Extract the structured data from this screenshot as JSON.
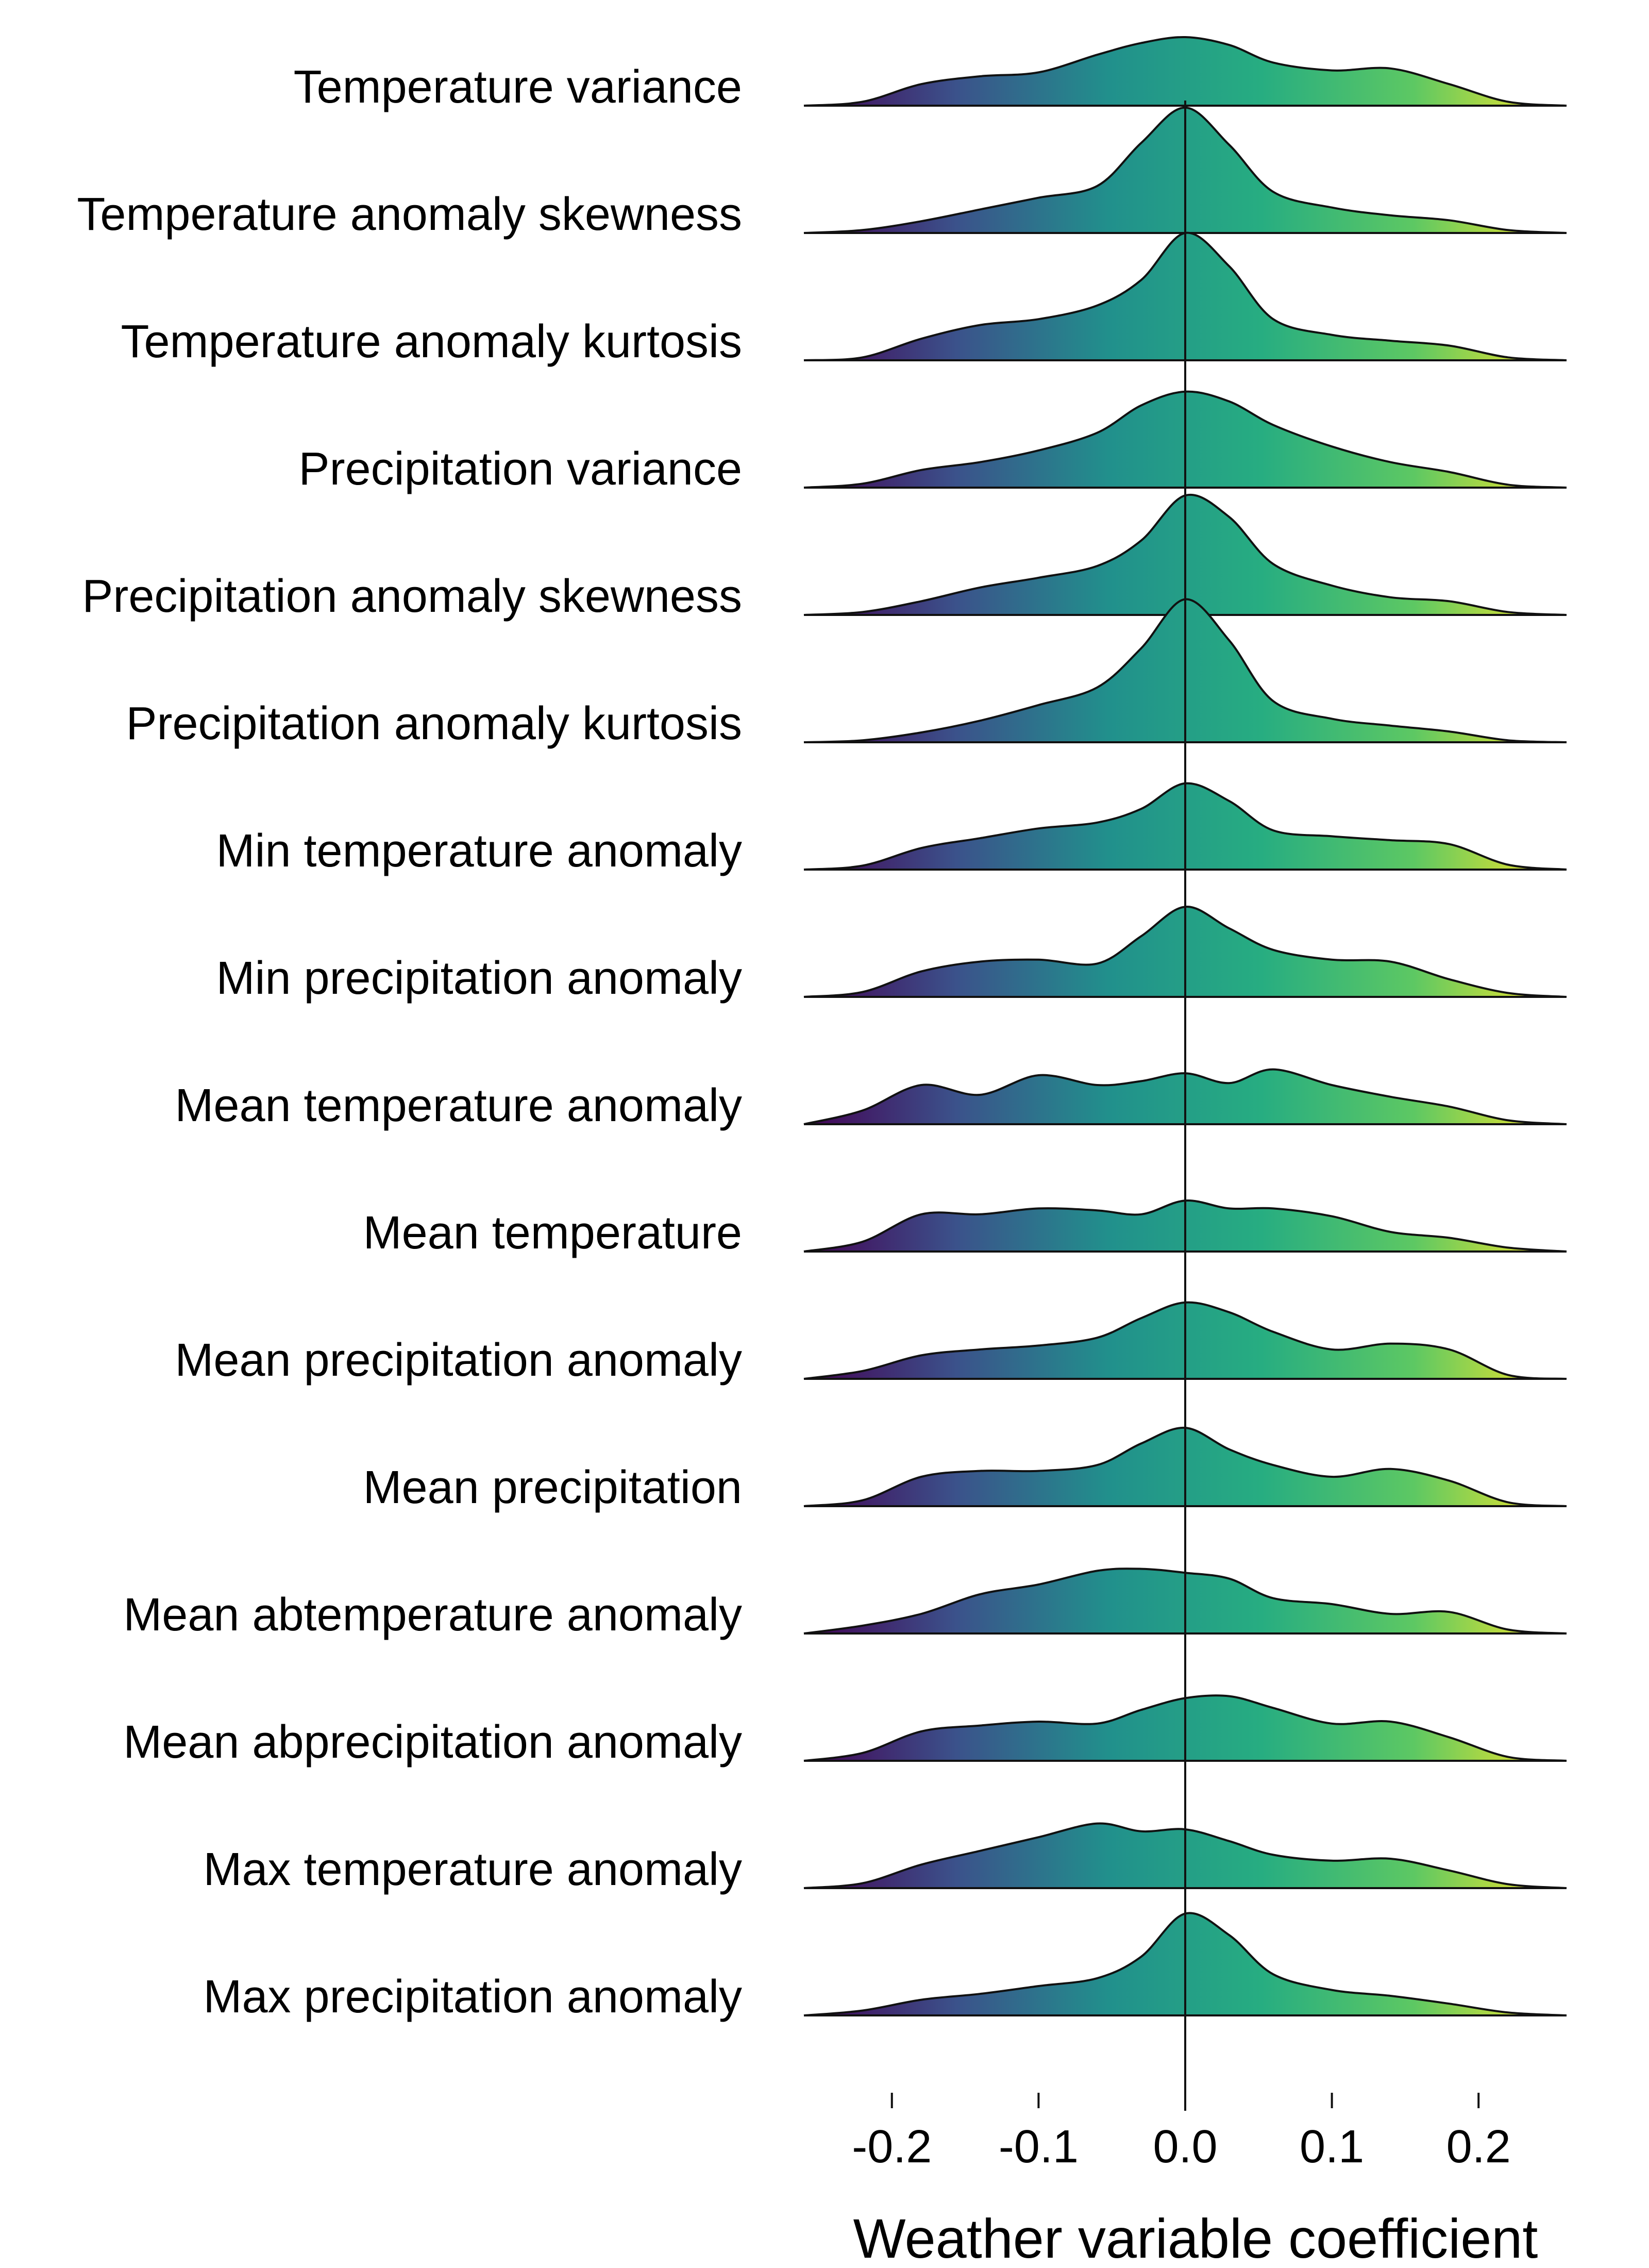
{
  "chart_data": {
    "type": "ridgeline",
    "title": "",
    "xlabel": "Weather variable coefficient",
    "ylabel": "",
    "xlim": [
      -0.26,
      0.26
    ],
    "xticks": [
      -0.2,
      -0.1,
      0.0,
      0.1,
      0.2
    ],
    "xtick_labels": [
      "-0.2",
      "-0.1",
      "0.0",
      "0.1",
      "0.2"
    ],
    "reference_line_x": 0.0,
    "fill": "viridis gradient along x",
    "gradient_colors": [
      "#440154",
      "#3b528b",
      "#21908c",
      "#27ad81",
      "#5dc863",
      "#fde725"
    ],
    "grid": false,
    "legend": "none",
    "x": [
      -0.26,
      -0.22,
      -0.18,
      -0.14,
      -0.1,
      -0.06,
      -0.03,
      0.0,
      0.03,
      0.06,
      0.1,
      0.14,
      0.18,
      0.22,
      0.26
    ],
    "series": [
      {
        "name": "Temperature variance",
        "density": [
          0.0,
          0.04,
          0.22,
          0.3,
          0.34,
          0.52,
          0.64,
          0.7,
          0.62,
          0.44,
          0.36,
          0.38,
          0.22,
          0.04,
          0.0
        ]
      },
      {
        "name": "Temperature anomaly skewness",
        "density": [
          0.0,
          0.03,
          0.12,
          0.24,
          0.36,
          0.48,
          0.92,
          1.28,
          0.9,
          0.42,
          0.26,
          0.18,
          0.13,
          0.03,
          0.0
        ]
      },
      {
        "name": "Temperature anomaly kurtosis",
        "density": [
          0.0,
          0.03,
          0.22,
          0.36,
          0.42,
          0.56,
          0.82,
          1.3,
          0.96,
          0.42,
          0.26,
          0.2,
          0.15,
          0.03,
          0.0
        ]
      },
      {
        "name": "Precipitation variance",
        "density": [
          0.0,
          0.04,
          0.18,
          0.26,
          0.38,
          0.56,
          0.84,
          0.98,
          0.88,
          0.64,
          0.42,
          0.26,
          0.16,
          0.03,
          0.0
        ]
      },
      {
        "name": "Precipitation anomaly skewness",
        "density": [
          0.0,
          0.03,
          0.14,
          0.28,
          0.38,
          0.5,
          0.76,
          1.22,
          1.0,
          0.52,
          0.3,
          0.18,
          0.14,
          0.03,
          0.0
        ]
      },
      {
        "name": "Precipitation anomaly kurtosis",
        "density": [
          0.0,
          0.02,
          0.1,
          0.22,
          0.38,
          0.56,
          0.96,
          1.46,
          1.04,
          0.42,
          0.24,
          0.17,
          0.11,
          0.02,
          0.0
        ]
      },
      {
        "name": "Min temperature anomaly",
        "density": [
          0.0,
          0.04,
          0.22,
          0.32,
          0.42,
          0.48,
          0.62,
          0.88,
          0.7,
          0.4,
          0.34,
          0.3,
          0.26,
          0.05,
          0.0
        ]
      },
      {
        "name": "Min precipitation anomaly",
        "density": [
          0.0,
          0.05,
          0.26,
          0.36,
          0.38,
          0.34,
          0.62,
          0.92,
          0.7,
          0.48,
          0.38,
          0.36,
          0.18,
          0.04,
          0.0
        ]
      },
      {
        "name": "Mean temperature anomaly",
        "density": [
          0.0,
          0.14,
          0.4,
          0.3,
          0.5,
          0.4,
          0.44,
          0.52,
          0.42,
          0.56,
          0.4,
          0.28,
          0.18,
          0.04,
          0.0
        ]
      },
      {
        "name": "Mean temperature",
        "density": [
          0.0,
          0.1,
          0.38,
          0.38,
          0.44,
          0.42,
          0.38,
          0.52,
          0.44,
          0.44,
          0.36,
          0.2,
          0.14,
          0.04,
          0.0
        ]
      },
      {
        "name": "Mean precipitation anomaly",
        "density": [
          0.0,
          0.08,
          0.24,
          0.3,
          0.34,
          0.42,
          0.62,
          0.78,
          0.68,
          0.48,
          0.3,
          0.36,
          0.3,
          0.04,
          0.0
        ]
      },
      {
        "name": "Mean precipitation",
        "density": [
          0.0,
          0.06,
          0.3,
          0.36,
          0.36,
          0.42,
          0.64,
          0.8,
          0.58,
          0.42,
          0.3,
          0.38,
          0.26,
          0.04,
          0.0
        ]
      },
      {
        "name": "Mean abtemperature anomaly",
        "density": [
          0.0,
          0.08,
          0.2,
          0.4,
          0.5,
          0.64,
          0.66,
          0.62,
          0.56,
          0.36,
          0.3,
          0.2,
          0.22,
          0.04,
          0.0
        ]
      },
      {
        "name": "Mean abprecipitation anomaly",
        "density": [
          0.0,
          0.08,
          0.3,
          0.36,
          0.4,
          0.38,
          0.52,
          0.64,
          0.66,
          0.54,
          0.38,
          0.4,
          0.24,
          0.04,
          0.0
        ]
      },
      {
        "name": "Max temperature anomaly",
        "density": [
          0.0,
          0.05,
          0.24,
          0.38,
          0.52,
          0.66,
          0.58,
          0.6,
          0.48,
          0.34,
          0.28,
          0.3,
          0.18,
          0.04,
          0.0
        ]
      },
      {
        "name": "Max precipitation anomaly",
        "density": [
          0.0,
          0.05,
          0.16,
          0.22,
          0.3,
          0.38,
          0.6,
          1.04,
          0.82,
          0.42,
          0.26,
          0.2,
          0.12,
          0.03,
          0.0
        ]
      }
    ]
  }
}
